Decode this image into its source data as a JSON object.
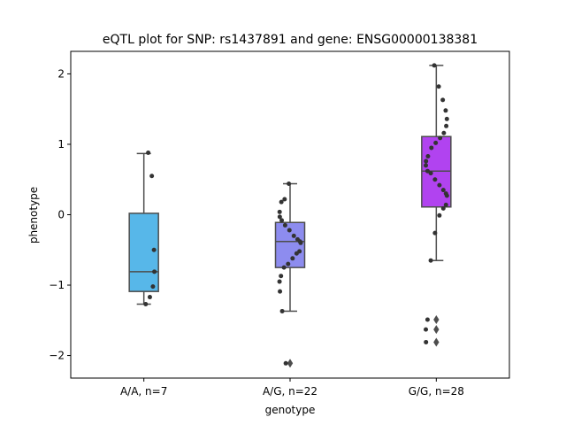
{
  "chart_data": {
    "type": "box",
    "title": "eQTL plot for SNP: rs1437891 and gene: ENSG00000138381",
    "xlabel": "genotype",
    "ylabel": "phenotype",
    "ylim": [
      -2.32,
      2.32
    ],
    "yticks": [
      2,
      1,
      0,
      -1,
      -2
    ],
    "ytick_labels": [
      "2",
      "1",
      "0",
      "−1",
      "−2"
    ],
    "grid": false,
    "groups": [
      {
        "label": "A/A, n=7",
        "color": "#57b7e9",
        "q1": -1.09,
        "median": -0.81,
        "q3": 0.02,
        "whisker_low": -1.27,
        "whisker_high": 0.87,
        "outliers": [],
        "points": [
          0.88,
          0.55,
          -0.5,
          -0.81,
          -1.02,
          -1.17,
          -1.27
        ]
      },
      {
        "label": "A/G, n=22",
        "color": "#8d8cef",
        "q1": -0.75,
        "median": -0.38,
        "q3": -0.11,
        "whisker_low": -1.37,
        "whisker_high": 0.44,
        "outliers": [
          -2.11
        ],
        "points": [
          0.44,
          0.22,
          0.18,
          0.04,
          -0.03,
          -0.08,
          -0.15,
          -0.22,
          -0.3,
          -0.35,
          -0.38,
          -0.4,
          -0.52,
          -0.55,
          -0.62,
          -0.7,
          -0.75,
          -0.87,
          -0.95,
          -1.09,
          -1.37,
          -2.11
        ]
      },
      {
        "label": "G/G, n=28",
        "color": "#b143f0",
        "q1": 0.11,
        "median": 0.62,
        "q3": 1.11,
        "whisker_low": -0.65,
        "whisker_high": 2.12,
        "outliers": [
          -1.49,
          -1.63,
          -1.81
        ],
        "points": [
          2.12,
          1.82,
          1.63,
          1.48,
          1.36,
          1.26,
          1.16,
          1.09,
          1.02,
          0.95,
          0.83,
          0.76,
          0.7,
          0.62,
          0.59,
          0.5,
          0.42,
          0.35,
          0.3,
          0.27,
          0.14,
          0.09,
          -0.01,
          -0.26,
          -0.65,
          -1.49,
          -1.63,
          -1.81
        ]
      }
    ]
  }
}
